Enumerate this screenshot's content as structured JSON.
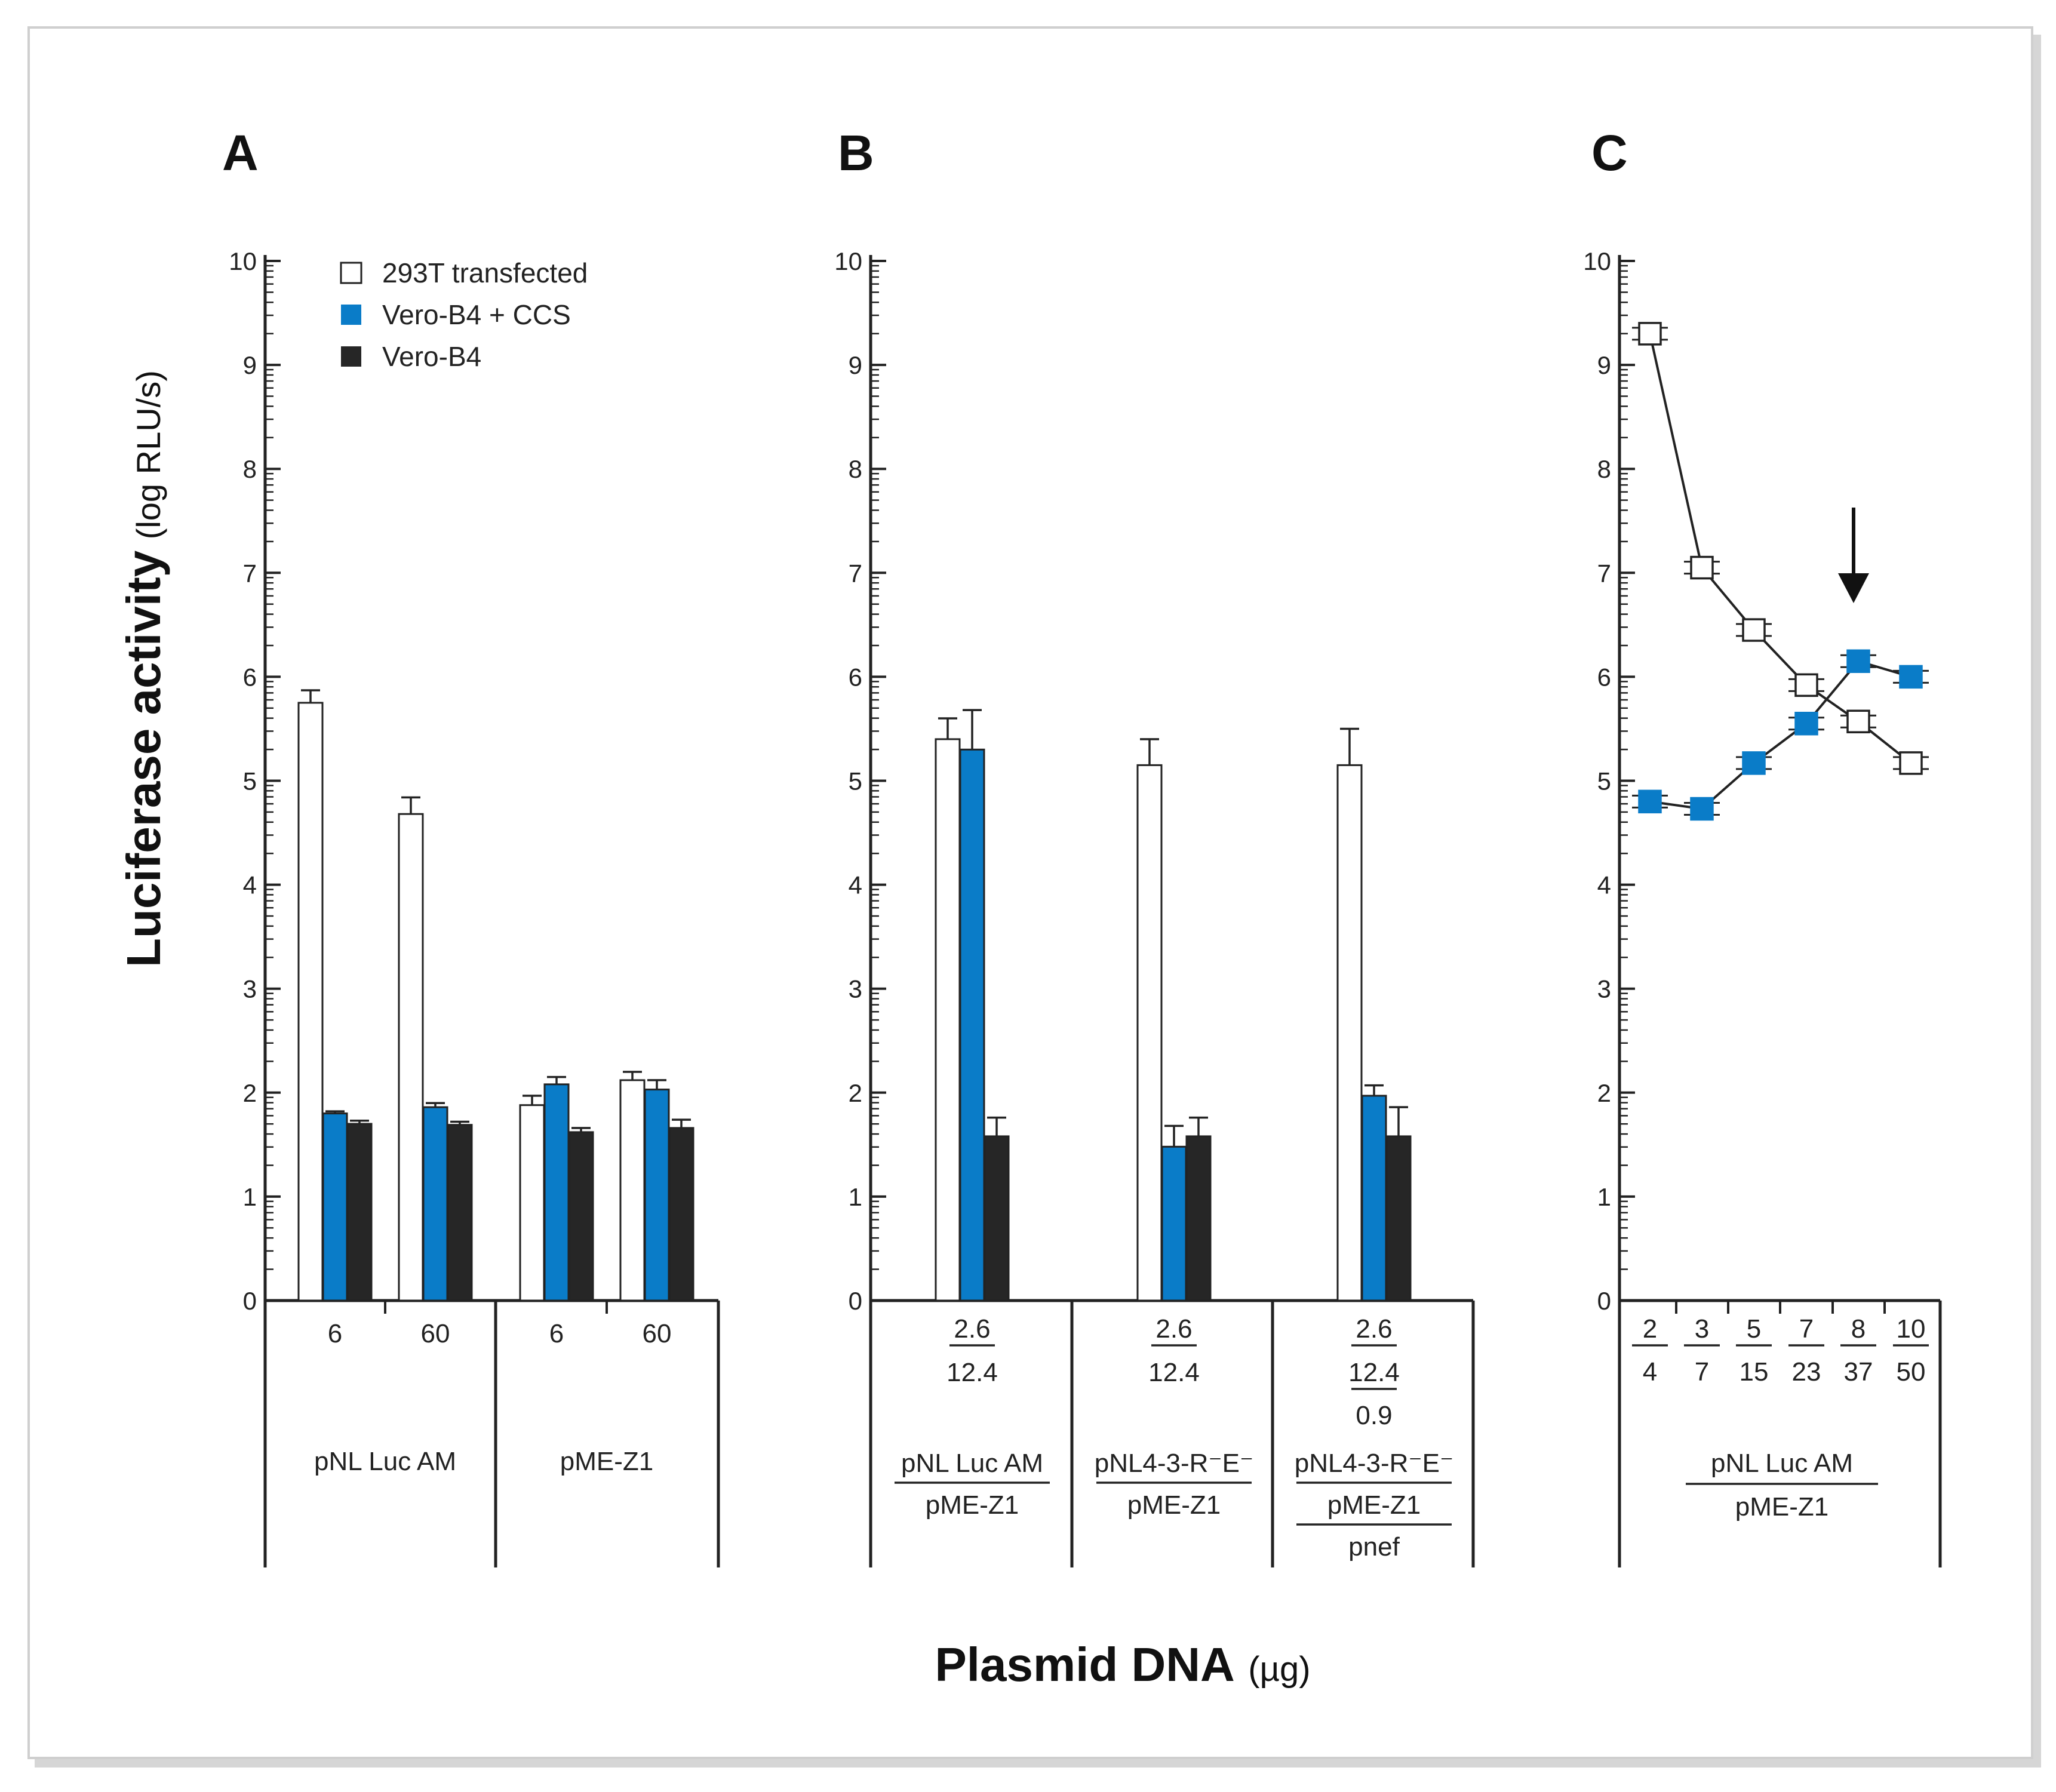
{
  "colors": {
    "series_293T": "#ffffff",
    "series_vero_ccs": "#0a7cc8",
    "series_vero": "#262626",
    "stroke": "#222222"
  },
  "y_axis": {
    "title": "Luciferase activity",
    "unit": "(log RLU/s)",
    "ticks": [
      "0",
      "1",
      "2",
      "3",
      "4",
      "5",
      "6",
      "7",
      "8",
      "9",
      "10"
    ]
  },
  "x_axis": {
    "title": "Plasmid DNA",
    "unit": "(µg)"
  },
  "legend": [
    {
      "label": "293T transfected",
      "color": "#ffffff"
    },
    {
      "label": "Vero-B4 + CCS",
      "color": "#0a7cc8"
    },
    {
      "label": "Vero-B4",
      "color": "#262626"
    }
  ],
  "chart_data": [
    {
      "panel": "A",
      "type": "bar",
      "ylim": [
        0,
        10
      ],
      "xlabel": "Plasmid DNA (µg)",
      "ylabel": "Luciferase activity (log RLU/s)",
      "categories": [
        "6",
        "60",
        "6",
        "60"
      ],
      "groups": [
        {
          "label": "pNL Luc AM",
          "categories": [
            "6",
            "60"
          ]
        },
        {
          "label": "pME-Z1",
          "categories": [
            "6",
            "60"
          ]
        }
      ],
      "series": [
        {
          "name": "293T transfected",
          "values": [
            5.75,
            4.68,
            1.88,
            2.12
          ],
          "errors": [
            0.12,
            0.16,
            0.09,
            0.08
          ]
        },
        {
          "name": "Vero-B4 + CCS",
          "values": [
            1.8,
            1.86,
            2.08,
            2.03
          ],
          "errors": [
            0.02,
            0.04,
            0.07,
            0.09
          ]
        },
        {
          "name": "Vero-B4",
          "values": [
            1.7,
            1.69,
            1.62,
            1.66
          ],
          "errors": [
            0.03,
            0.03,
            0.04,
            0.08
          ]
        }
      ]
    },
    {
      "panel": "B",
      "type": "bar",
      "ylim": [
        0,
        10
      ],
      "xlabel": "Plasmid DNA (µg)",
      "ylabel": "Luciferase activity (log RLU/s)",
      "categories": [
        {
          "amounts": [
            "2.6",
            "12.4"
          ],
          "plasmids": [
            "pNL Luc AM",
            "pME-Z1"
          ]
        },
        {
          "amounts": [
            "2.6",
            "12.4"
          ],
          "plasmids": [
            "pNL4-3-R⁻E⁻",
            "pME-Z1"
          ]
        },
        {
          "amounts": [
            "2.6",
            "12.4",
            "0.9"
          ],
          "plasmids": [
            "pNL4-3-R⁻E⁻",
            "pME-Z1",
            "pnef"
          ]
        }
      ],
      "series": [
        {
          "name": "293T transfected",
          "values": [
            5.4,
            5.15,
            5.15
          ],
          "errors": [
            0.2,
            0.25,
            0.35
          ]
        },
        {
          "name": "Vero-B4 + CCS",
          "values": [
            5.3,
            1.48,
            1.97
          ],
          "errors": [
            0.38,
            0.2,
            0.1
          ]
        },
        {
          "name": "Vero-B4",
          "values": [
            1.58,
            1.58,
            1.58
          ],
          "errors": [
            0.18,
            0.18,
            0.28
          ]
        }
      ]
    },
    {
      "panel": "C",
      "type": "line",
      "ylim": [
        0,
        10
      ],
      "xlabel": "Plasmid DNA (µg)",
      "ylabel": "Luciferase activity (log RLU/s)",
      "x": [
        {
          "top": "2",
          "bottom": "4"
        },
        {
          "top": "3",
          "bottom": "7"
        },
        {
          "top": "5",
          "bottom": "15"
        },
        {
          "top": "7",
          "bottom": "23"
        },
        {
          "top": "8",
          "bottom": "37"
        },
        {
          "top": "10",
          "bottom": "50"
        }
      ],
      "group_label": [
        "pNL Luc AM",
        "pME-Z1"
      ],
      "series": [
        {
          "name": "293T transfected",
          "values": [
            9.3,
            7.05,
            6.45,
            5.92,
            5.57,
            5.17
          ]
        },
        {
          "name": "Vero-B4 + CCS",
          "values": [
            4.8,
            4.73,
            5.17,
            5.55,
            6.15,
            6.0
          ]
        }
      ],
      "annotation": "arrow pointing to x index 4"
    }
  ]
}
